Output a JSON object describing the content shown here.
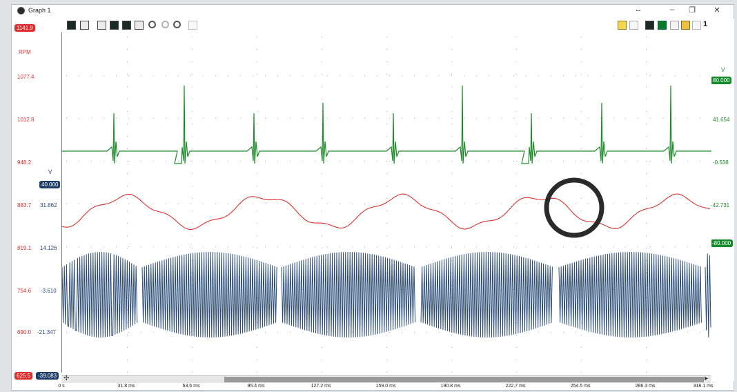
{
  "window": {
    "title": "Graph 1",
    "controls": {
      "resize_glyph": "↔",
      "minimize_glyph": "–",
      "restore_glyph": "❐",
      "close_glyph": "✕"
    }
  },
  "toolbar": {
    "left_icons": [
      "axis-icon",
      "channel-icon",
      "grid-icon",
      "graph-view-icon",
      "graph-dark-icon",
      "list-icon",
      "zoom-in-icon",
      "zoom-out-icon",
      "zoom-fit-icon",
      "pan-icon"
    ],
    "right_icons": [
      "comment-icon",
      "ruler-icon",
      "scope-icon",
      "graph-green-icon",
      "print-icon",
      "marker-icon",
      "close-channel-icon"
    ],
    "page_number": "1"
  },
  "left_scale": {
    "top_pill": "1141.9",
    "bottom_red_pill": "625.5",
    "bottom_blue_pill": "-39.083",
    "rpm_label": "RPM",
    "v_label": "V",
    "blue_top_pill": "40.000",
    "rows": [
      {
        "red": "1077.4",
        "blue": ""
      },
      {
        "red": "1012.8",
        "blue": ""
      },
      {
        "red": "948.2",
        "blue": ""
      },
      {
        "red": "883.7",
        "blue": "31.862"
      },
      {
        "red": "819.1",
        "blue": "14.126"
      },
      {
        "red": "754.6",
        "blue": "-3.610"
      },
      {
        "red": "690.0",
        "blue": "-21.347"
      }
    ]
  },
  "right_scale": {
    "v_label": "V",
    "top_pill": "80.000",
    "labels": [
      "41.654",
      "-0.538",
      "-42.731"
    ],
    "bottom_pill": "-80.000"
  },
  "time_axis": [
    "0 s",
    "31.8 ms",
    "63.6 ms",
    "95.4 ms",
    "127.2 ms",
    "159.0 ms",
    "190.8 ms",
    "222.7 ms",
    "254.5 ms",
    "286.3 ms",
    "318.1 ms"
  ],
  "colors": {
    "rpm": "#e03030",
    "current": "#2b4b78",
    "voltage": "#1e8a2a",
    "annotation": "#2a2a2a"
  },
  "chart_data": {
    "type": "line",
    "x_unit": "ms",
    "xlim": [
      0,
      318.1
    ],
    "series": [
      {
        "name": "RPM",
        "color": "#e03030"
      },
      {
        "name": "V",
        "color": "#2b4b78"
      },
      {
        "name": "V",
        "color": "#1e8a2a"
      }
    ],
    "annotation": "circle highlighting dip in RPM trace near 250 ms"
  }
}
